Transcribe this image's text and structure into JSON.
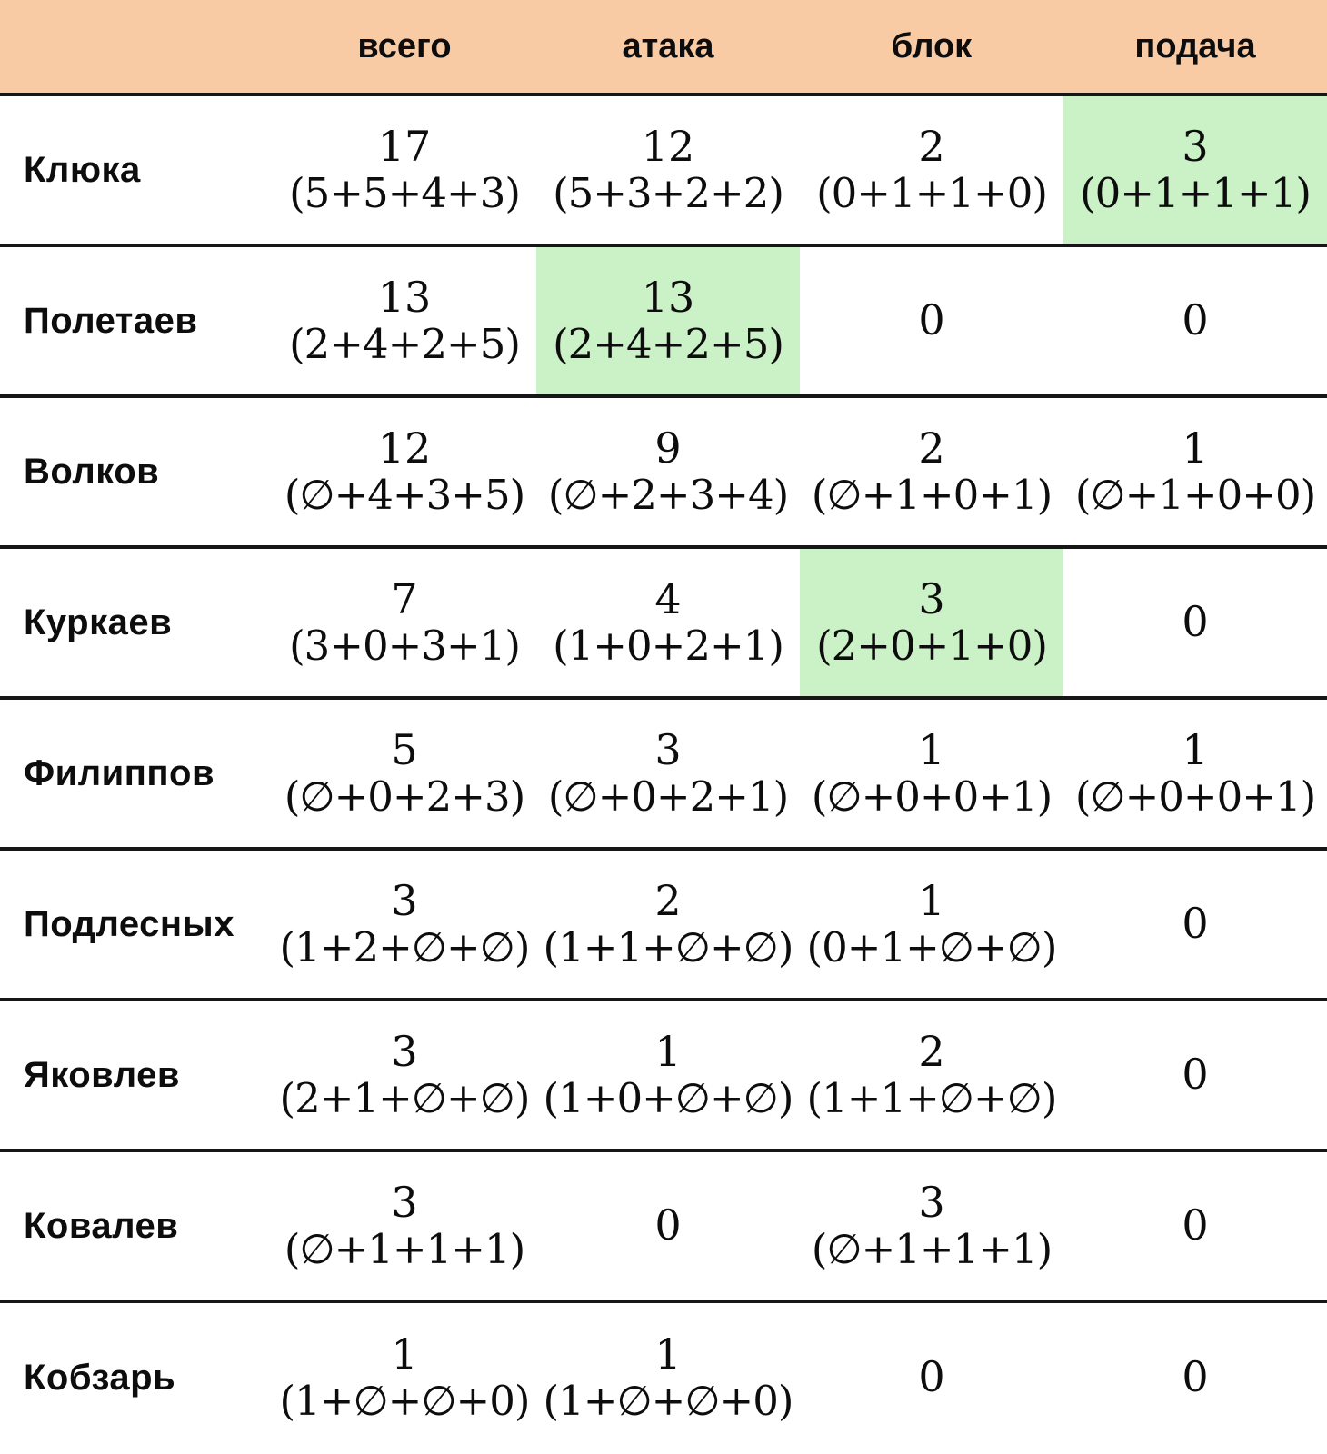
{
  "chart_data": {
    "type": "table",
    "title": "",
    "columns": [
      "всего",
      "атака",
      "блок",
      "подача"
    ],
    "header_bg": "#f8cba5",
    "highlight_bg": "#cbf1c6",
    "border_color": "#161616",
    "rows": [
      {
        "name": "Клюка",
        "highlight": 3,
        "cells": [
          {
            "main": "17",
            "detail": "(5+5+4+3)"
          },
          {
            "main": "12",
            "detail": "(5+3+2+2)"
          },
          {
            "main": "2",
            "detail": "(0+1+1+0)"
          },
          {
            "main": "3",
            "detail": "(0+1+1+1)"
          }
        ]
      },
      {
        "name": "Полетаев",
        "highlight": 1,
        "cells": [
          {
            "main": "13",
            "detail": "(2+4+2+5)"
          },
          {
            "main": "13",
            "detail": "(2+4+2+5)"
          },
          {
            "main": "0",
            "detail": ""
          },
          {
            "main": "0",
            "detail": ""
          }
        ]
      },
      {
        "name": "Волков",
        "highlight": null,
        "cells": [
          {
            "main": "12",
            "detail": "(∅+4+3+5)"
          },
          {
            "main": "9",
            "detail": "(∅+2+3+4)"
          },
          {
            "main": "2",
            "detail": "(∅+1+0+1)"
          },
          {
            "main": "1",
            "detail": "(∅+1+0+0)"
          }
        ]
      },
      {
        "name": "Куркаев",
        "highlight": 2,
        "cells": [
          {
            "main": "7",
            "detail": "(3+0+3+1)"
          },
          {
            "main": "4",
            "detail": "(1+0+2+1)"
          },
          {
            "main": "3",
            "detail": "(2+0+1+0)"
          },
          {
            "main": "0",
            "detail": ""
          }
        ]
      },
      {
        "name": "Филиппов",
        "highlight": null,
        "cells": [
          {
            "main": "5",
            "detail": "(∅+0+2+3)"
          },
          {
            "main": "3",
            "detail": "(∅+0+2+1)"
          },
          {
            "main": "1",
            "detail": "(∅+0+0+1)"
          },
          {
            "main": "1",
            "detail": "(∅+0+0+1)"
          }
        ]
      },
      {
        "name": "Подлесных",
        "highlight": null,
        "cells": [
          {
            "main": "3",
            "detail": "(1+2+∅+∅)"
          },
          {
            "main": "2",
            "detail": "(1+1+∅+∅)"
          },
          {
            "main": "1",
            "detail": "(0+1+∅+∅)"
          },
          {
            "main": "0",
            "detail": ""
          }
        ]
      },
      {
        "name": "Яковлев",
        "highlight": null,
        "cells": [
          {
            "main": "3",
            "detail": "(2+1+∅+∅)"
          },
          {
            "main": "1",
            "detail": "(1+0+∅+∅)"
          },
          {
            "main": "2",
            "detail": "(1+1+∅+∅)"
          },
          {
            "main": "0",
            "detail": ""
          }
        ]
      },
      {
        "name": "Ковалев",
        "highlight": null,
        "cells": [
          {
            "main": "3",
            "detail": "(∅+1+1+1)"
          },
          {
            "main": "0",
            "detail": ""
          },
          {
            "main": "3",
            "detail": "(∅+1+1+1)"
          },
          {
            "main": "0",
            "detail": ""
          }
        ]
      },
      {
        "name": "Кобзарь",
        "highlight": null,
        "cells": [
          {
            "main": "1",
            "detail": "(1+∅+∅+0)"
          },
          {
            "main": "1",
            "detail": "(1+∅+∅+0)"
          },
          {
            "main": "0",
            "detail": ""
          },
          {
            "main": "0",
            "detail": ""
          }
        ]
      }
    ]
  }
}
